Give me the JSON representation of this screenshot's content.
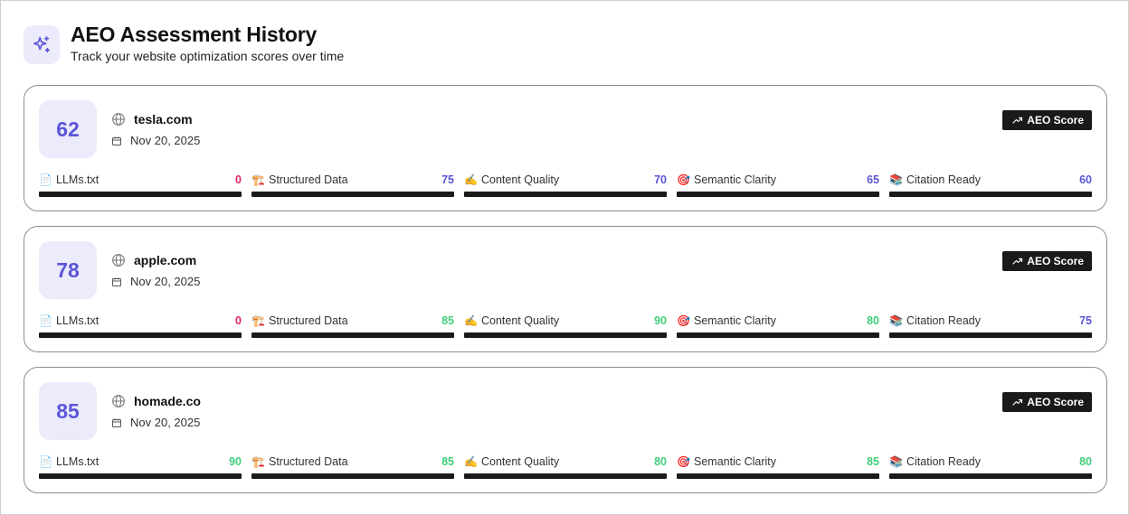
{
  "header": {
    "title": "AEO Assessment History",
    "subtitle": "Track your website optimization scores over time",
    "logo_icon": "sparkles-icon"
  },
  "badge_label": "AEO Score",
  "colors": {
    "accent": "#5a55d8",
    "low": "#e0245e",
    "mid": "#5a55d8",
    "high": "#3ecf7a",
    "bar": "#1a1a1a"
  },
  "assessments": [
    {
      "score": "62",
      "domain": "tesla.com",
      "date": "Nov 20, 2025",
      "metrics": [
        {
          "emoji": "📄",
          "label": "LLMs.txt",
          "value": "0",
          "color": "#e0245e"
        },
        {
          "emoji": "🏗️",
          "label": "Structured Data",
          "value": "75",
          "color": "#5a55d8"
        },
        {
          "emoji": "✍️",
          "label": "Content Quality",
          "value": "70",
          "color": "#5a55d8"
        },
        {
          "emoji": "🎯",
          "label": "Semantic Clarity",
          "value": "65",
          "color": "#5a55d8"
        },
        {
          "emoji": "📚",
          "label": "Citation Ready",
          "value": "60",
          "color": "#5a55d8"
        }
      ]
    },
    {
      "score": "78",
      "domain": "apple.com",
      "date": "Nov 20, 2025",
      "metrics": [
        {
          "emoji": "📄",
          "label": "LLMs.txt",
          "value": "0",
          "color": "#e0245e"
        },
        {
          "emoji": "🏗️",
          "label": "Structured Data",
          "value": "85",
          "color": "#3ecf7a"
        },
        {
          "emoji": "✍️",
          "label": "Content Quality",
          "value": "90",
          "color": "#3ecf7a"
        },
        {
          "emoji": "🎯",
          "label": "Semantic Clarity",
          "value": "80",
          "color": "#3ecf7a"
        },
        {
          "emoji": "📚",
          "label": "Citation Ready",
          "value": "75",
          "color": "#5a55d8"
        }
      ]
    },
    {
      "score": "85",
      "domain": "homade.co",
      "date": "Nov 20, 2025",
      "metrics": [
        {
          "emoji": "📄",
          "label": "LLMs.txt",
          "value": "90",
          "color": "#3ecf7a"
        },
        {
          "emoji": "🏗️",
          "label": "Structured Data",
          "value": "85",
          "color": "#3ecf7a"
        },
        {
          "emoji": "✍️",
          "label": "Content Quality",
          "value": "80",
          "color": "#3ecf7a"
        },
        {
          "emoji": "🎯",
          "label": "Semantic Clarity",
          "value": "85",
          "color": "#3ecf7a"
        },
        {
          "emoji": "📚",
          "label": "Citation Ready",
          "value": "80",
          "color": "#3ecf7a"
        }
      ]
    }
  ]
}
